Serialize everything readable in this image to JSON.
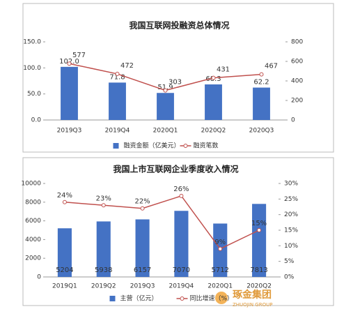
{
  "chart_data": [
    {
      "type": "bar",
      "title": "我国互联网投融资总体情况",
      "categories": [
        "2019Q3",
        "2019Q4",
        "2020Q1",
        "2020Q2",
        "2020Q3"
      ],
      "series": [
        {
          "name": "融资金额（亿美元）",
          "color": "#4472c4",
          "type": "bar",
          "values": [
            102.0,
            71.8,
            51.9,
            68.3,
            62.2
          ],
          "value_labels": [
            "102.0",
            "71.8",
            "51.9",
            "68.3",
            "62.2"
          ]
        },
        {
          "name": "融资笔数",
          "color": "#c0504d",
          "type": "line",
          "axis": "y2",
          "values": [
            577,
            472,
            303,
            431,
            467
          ]
        }
      ],
      "ylim": [
        0,
        150
      ],
      "yticks": [
        {
          "value": 0,
          "label": "0.0"
        },
        {
          "value": 50,
          "label": "50.0"
        },
        {
          "value": 100,
          "label": "100.0"
        },
        {
          "value": 150,
          "label": "150.0"
        }
      ],
      "y2lim": [
        0,
        800
      ],
      "y2ticks": [
        0,
        200,
        400,
        600,
        800
      ],
      "grid": false,
      "legend": "bottom"
    },
    {
      "type": "bar",
      "title": "我国上市互联网企业季度收入情况",
      "categories": [
        "2019Q1",
        "2019Q2",
        "2019Q3",
        "2019Q4",
        "2020Q1",
        "2020Q2"
      ],
      "series": [
        {
          "name": "主营（亿元）",
          "color": "#4472c4",
          "type": "bar",
          "values": [
            5204,
            5938,
            6157,
            7070,
            5712,
            7813
          ]
        },
        {
          "name": "同比增速（%）",
          "color": "#c0504d",
          "type": "line",
          "axis": "y2",
          "values": [
            24,
            23,
            22,
            26,
            9,
            15
          ],
          "value_labels": [
            "24%",
            "23%",
            "22%",
            "26%",
            "9%",
            "15%"
          ]
        }
      ],
      "ylim": [
        0,
        10000
      ],
      "yticks": [
        0,
        2000,
        4000,
        6000,
        8000,
        10000
      ],
      "y2lim": [
        0,
        30
      ],
      "y2ticks": [
        {
          "value": 0,
          "label": "0%"
        },
        {
          "value": 5,
          "label": "5%"
        },
        {
          "value": 10,
          "label": "10%"
        },
        {
          "value": 15,
          "label": "15%"
        },
        {
          "value": 20,
          "label": "20%"
        },
        {
          "value": 25,
          "label": "25%"
        },
        {
          "value": 30,
          "label": "30%"
        }
      ],
      "grid": false,
      "legend": "bottom"
    }
  ],
  "logo": {
    "name": "琢金集团",
    "subtitle": "ZHUOJIN GROUP"
  }
}
